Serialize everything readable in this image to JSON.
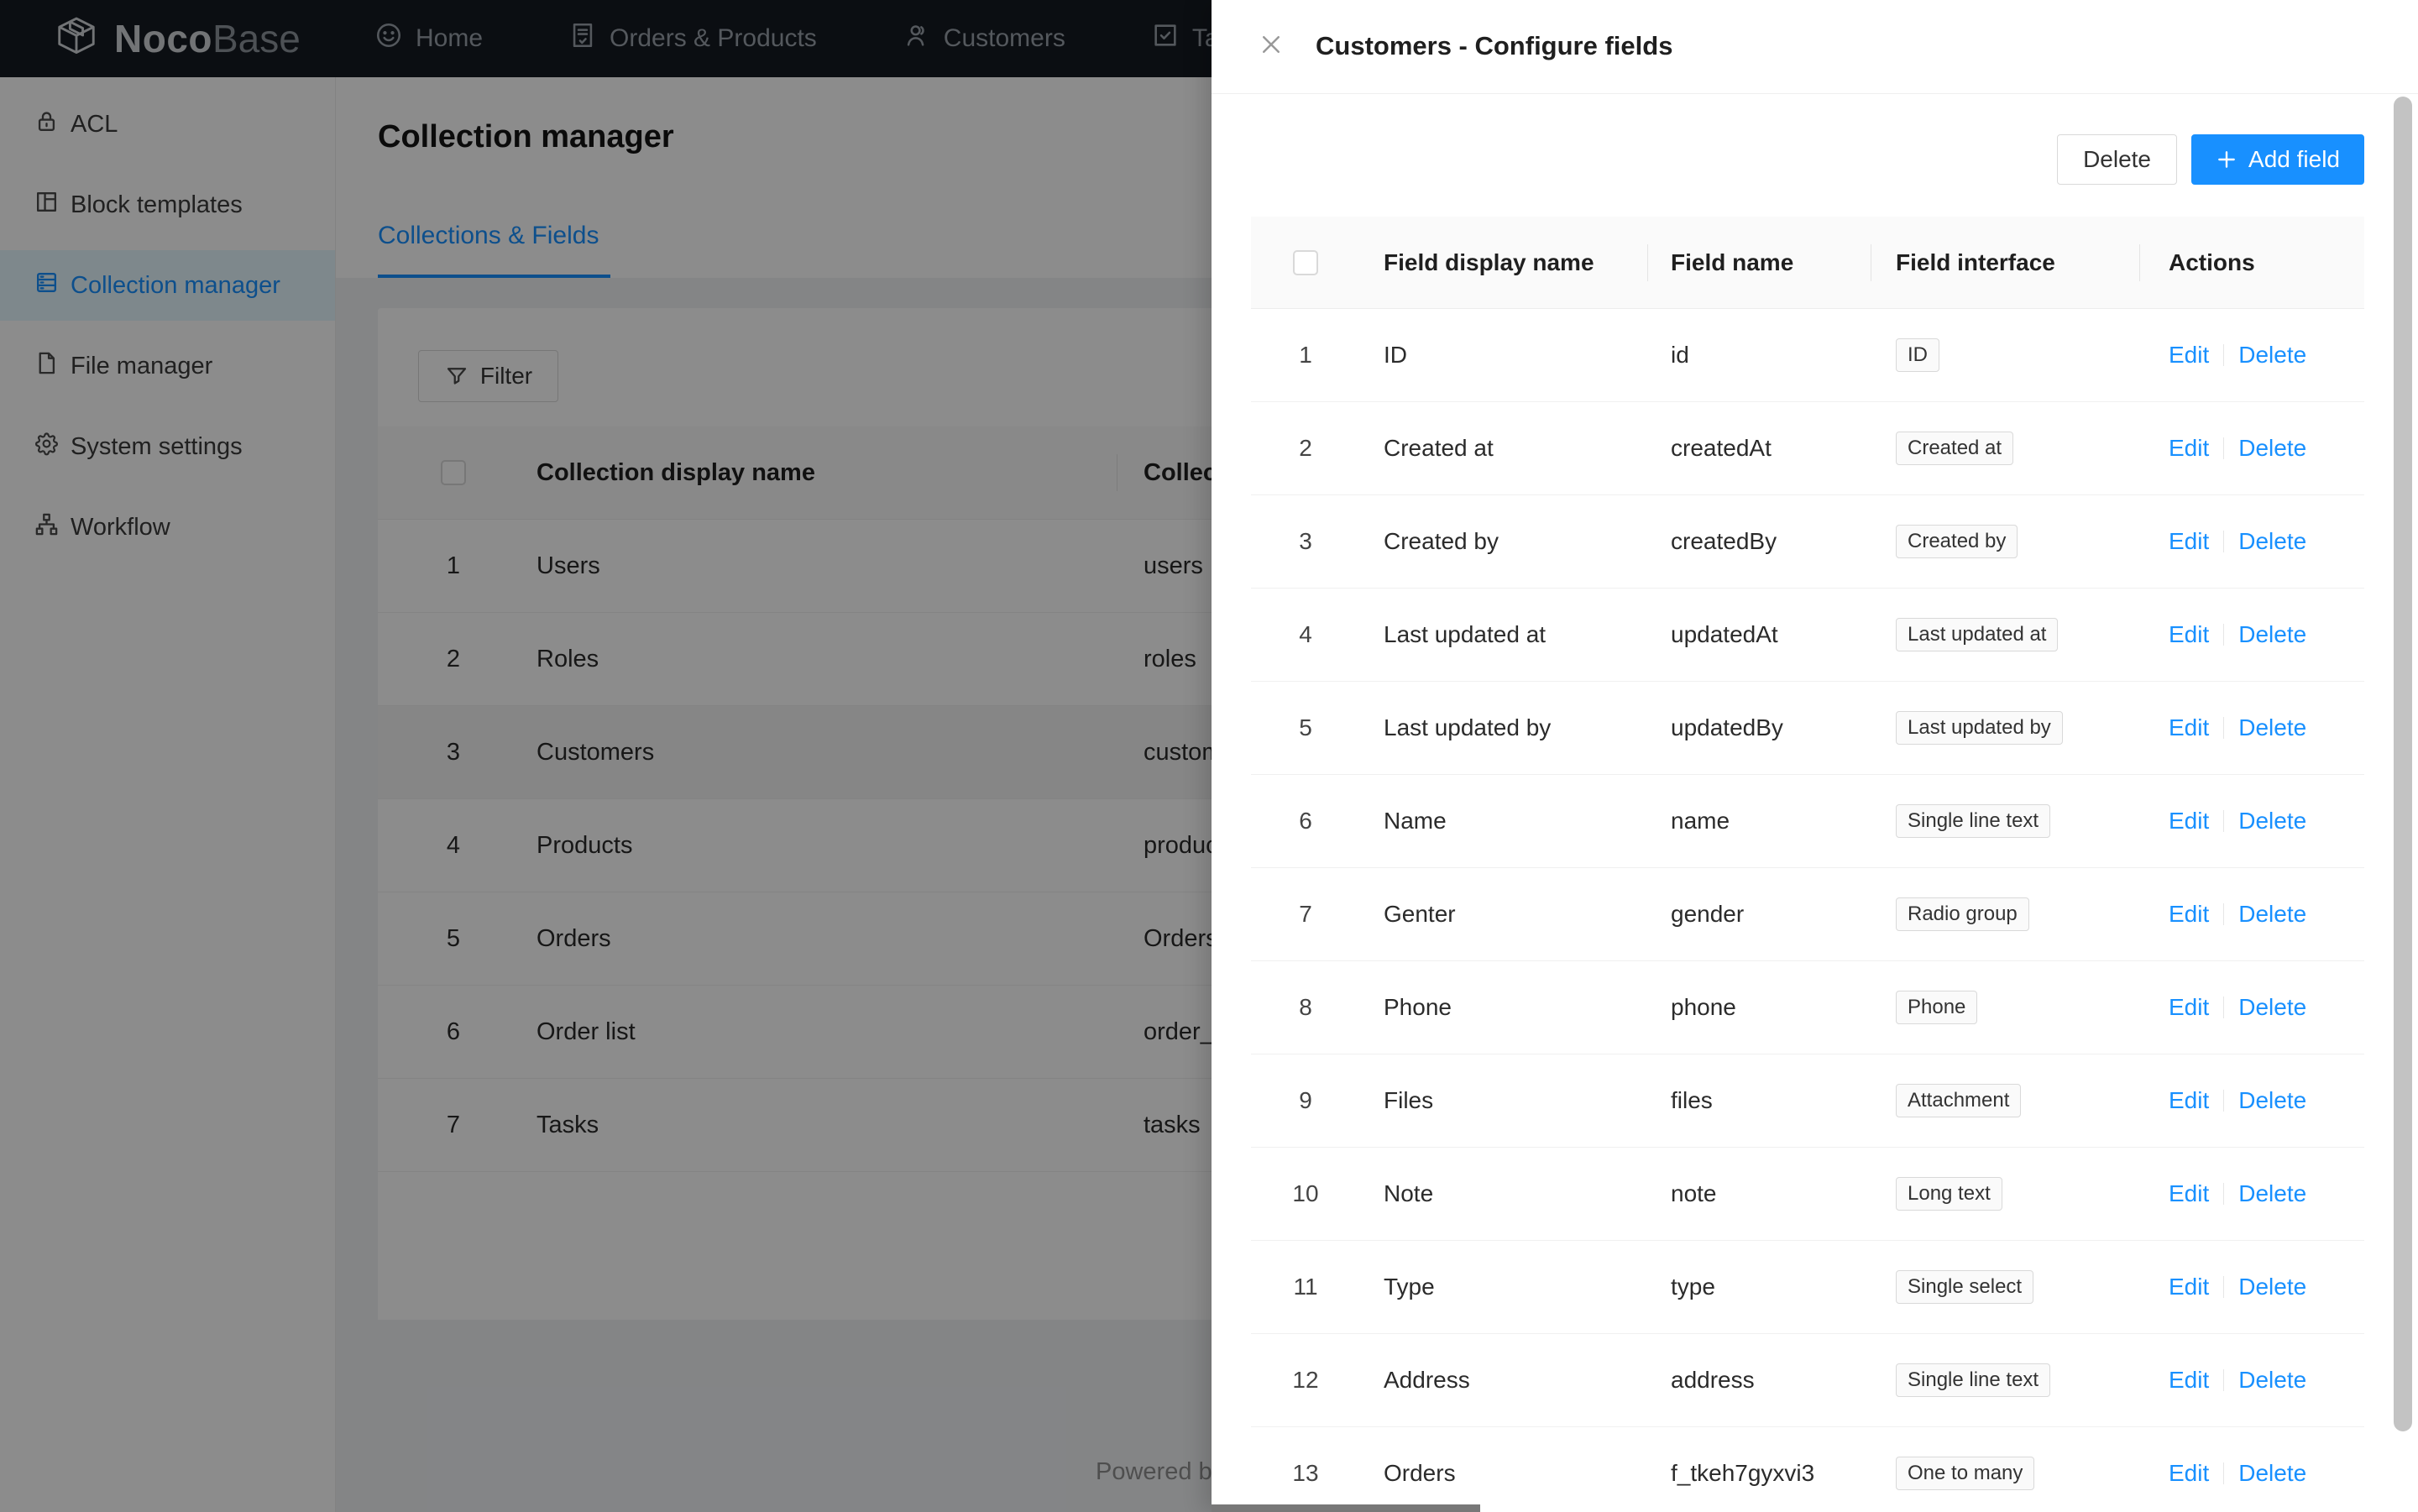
{
  "colors": {
    "accent": "#1890ff",
    "navbar_bg": "#141a21",
    "page_bg": "#f0f2f5",
    "selected_menu_bg": "#e6f7ff"
  },
  "navbar": {
    "logo_bold": "Noco",
    "logo_light": "Base",
    "items": [
      {
        "label": "Home",
        "icon": "smile-icon"
      },
      {
        "label": "Orders & Products",
        "icon": "file-done-icon"
      },
      {
        "label": "Customers",
        "icon": "user-icon"
      },
      {
        "label": "Tasks",
        "icon": "check-square-icon"
      }
    ]
  },
  "sidebar": {
    "items": [
      {
        "label": "ACL",
        "icon": "lock-icon",
        "selected": false
      },
      {
        "label": "Block templates",
        "icon": "layout-icon",
        "selected": false
      },
      {
        "label": "Collection manager",
        "icon": "collection-icon",
        "selected": true
      },
      {
        "label": "File manager",
        "icon": "file-icon",
        "selected": false
      },
      {
        "label": "System settings",
        "icon": "gear-icon",
        "selected": false
      },
      {
        "label": "Workflow",
        "icon": "workflow-icon",
        "selected": false
      }
    ]
  },
  "page": {
    "title": "Collection manager",
    "tab": "Collections & Fields",
    "filter_label": "Filter",
    "powered_by": "Powered by"
  },
  "collections_table": {
    "headers": [
      "Collection display name",
      "Collection name"
    ],
    "rows": [
      {
        "index": "1",
        "display_name": "Users",
        "name": "users",
        "highlight": false
      },
      {
        "index": "2",
        "display_name": "Roles",
        "name": "roles",
        "highlight": false
      },
      {
        "index": "3",
        "display_name": "Customers",
        "name": "customers",
        "highlight": true
      },
      {
        "index": "4",
        "display_name": "Products",
        "name": "products",
        "highlight": false
      },
      {
        "index": "5",
        "display_name": "Orders",
        "name": "Orders",
        "highlight": false
      },
      {
        "index": "6",
        "display_name": "Order list",
        "name": "order_list",
        "highlight": false
      },
      {
        "index": "7",
        "display_name": "Tasks",
        "name": "tasks",
        "highlight": false
      }
    ]
  },
  "drawer": {
    "title": "Customers - Configure fields",
    "delete_label": "Delete",
    "add_field_label": "Add field",
    "table": {
      "headers": [
        "Field display name",
        "Field name",
        "Field interface",
        "Actions"
      ],
      "action_labels": [
        "Edit",
        "Delete"
      ],
      "rows": [
        {
          "index": "1",
          "display_name": "ID",
          "name": "id",
          "interface": "ID"
        },
        {
          "index": "2",
          "display_name": "Created at",
          "name": "createdAt",
          "interface": "Created at"
        },
        {
          "index": "3",
          "display_name": "Created by",
          "name": "createdBy",
          "interface": "Created by"
        },
        {
          "index": "4",
          "display_name": "Last updated at",
          "name": "updatedAt",
          "interface": "Last updated at"
        },
        {
          "index": "5",
          "display_name": "Last updated by",
          "name": "updatedBy",
          "interface": "Last updated by"
        },
        {
          "index": "6",
          "display_name": "Name",
          "name": "name",
          "interface": "Single line text"
        },
        {
          "index": "7",
          "display_name": "Genter",
          "name": "gender",
          "interface": "Radio group"
        },
        {
          "index": "8",
          "display_name": "Phone",
          "name": "phone",
          "interface": "Phone"
        },
        {
          "index": "9",
          "display_name": "Files",
          "name": "files",
          "interface": "Attachment"
        },
        {
          "index": "10",
          "display_name": "Note",
          "name": "note",
          "interface": "Long text"
        },
        {
          "index": "11",
          "display_name": "Type",
          "name": "type",
          "interface": "Single select"
        },
        {
          "index": "12",
          "display_name": "Address",
          "name": "address",
          "interface": "Single line text"
        },
        {
          "index": "13",
          "display_name": "Orders",
          "name": "f_tkeh7gyxvi3",
          "interface": "One to many"
        }
      ]
    }
  }
}
